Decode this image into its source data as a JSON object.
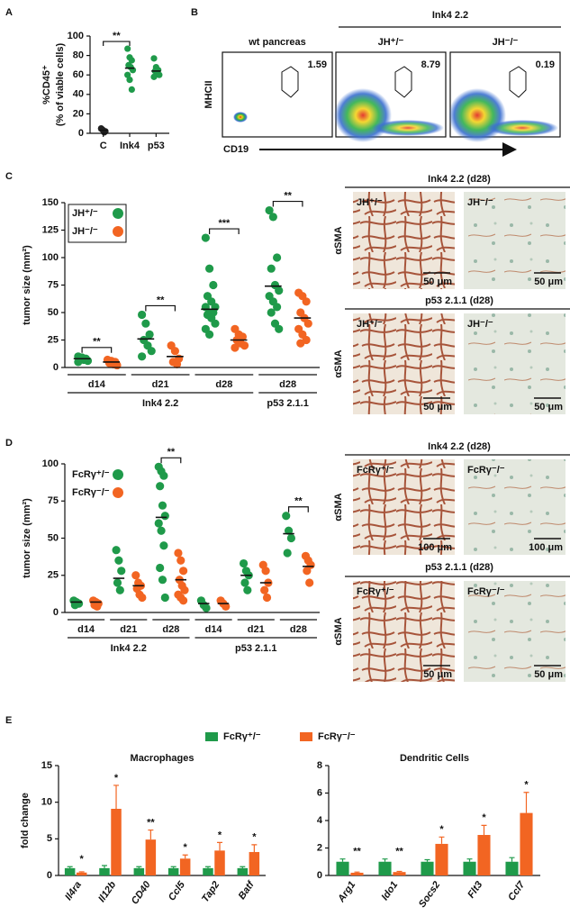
{
  "panel_labels": [
    "A",
    "B",
    "C",
    "D",
    "E"
  ],
  "flow_panel": {
    "title": "Ink4 2.2",
    "ylabel": "MHCII",
    "xlabel": "CD19",
    "plots": [
      {
        "title": "wt pancreas",
        "gate_percent": 1.59
      },
      {
        "title": "JH⁺/⁻",
        "gate_percent": 8.79
      },
      {
        "title": "JH⁻/⁻",
        "gate_percent": 0.19
      }
    ]
  },
  "histology": [
    {
      "rows": [
        {
          "title": "Ink4 2.2 (d28)",
          "stain": "αSMA",
          "images": [
            {
              "label": "JH⁺/⁻",
              "scale_bar": "50 μm"
            },
            {
              "label": "JH⁻/⁻",
              "scale_bar": "50 μm"
            }
          ]
        },
        {
          "title": "p53 2.1.1 (d28)",
          "stain": "αSMA",
          "images": [
            {
              "label": "JH⁺/⁻",
              "scale_bar": "50 μm"
            },
            {
              "label": "JH⁻/⁻",
              "scale_bar": "50 μm"
            }
          ]
        }
      ]
    },
    {
      "rows": [
        {
          "title": "Ink4 2.2 (d28)",
          "stain": "αSMA",
          "images": [
            {
              "label": "FcRγ⁺/⁻",
              "scale_bar": "100 μm"
            },
            {
              "label": "FcRγ⁻/⁻",
              "scale_bar": "100 μm"
            }
          ]
        },
        {
          "title": "p53 2.1.1 (d28)",
          "stain": "αSMA",
          "images": [
            {
              "label": "FcRγ⁺/⁻",
              "scale_bar": "50 μm"
            },
            {
              "label": "FcRγ⁻/⁻",
              "scale_bar": "50 μm"
            }
          ]
        }
      ]
    }
  ],
  "chart_data": [
    {
      "type": "dotplot",
      "ylabel": [
        "%CD45⁺",
        "(% of viable cells)"
      ],
      "categories": [
        "C",
        "Ink4",
        "p53"
      ],
      "series": [
        {
          "colors": [
            "#222222",
            "#1f9a4a",
            "#1f9a4a"
          ],
          "values": [
            [
              5,
              3,
              2,
              4,
              1
            ],
            [
              87,
              78,
              75,
              70,
              68,
              65,
              60,
              55,
              45
            ],
            [
              77,
              68,
              65,
              64,
              62,
              60,
              58
            ]
          ],
          "means": [
            3,
            67,
            64
          ]
        }
      ],
      "significance": "**",
      "ylim": [
        0,
        100
      ],
      "yticks": [
        0,
        20,
        40,
        60,
        80,
        100
      ]
    },
    {
      "type": "dotplot",
      "ylabel": "tumor size (mm²)",
      "categories": [
        "d14",
        "d21",
        "d28",
        "d28"
      ],
      "category_groups": [
        "Ink4 2.2",
        "Ink4 2.2",
        "Ink4 2.2",
        "p53 2.1.1"
      ],
      "legend_frame": true,
      "series": [
        {
          "name": "JH⁺/⁻",
          "color": "#1f9a4a",
          "values": [
            [
              10,
              9,
              8,
              8,
              7,
              6,
              5
            ],
            [
              48,
              40,
              30,
              25,
              20,
              15,
              10
            ],
            [
              118,
              90,
              75,
              65,
              60,
              55,
              55,
              50,
              50,
              48,
              45,
              40,
              35,
              30
            ],
            [
              143,
              137,
              100,
              90,
              75,
              70,
              65,
              60,
              55,
              50,
              40,
              35
            ]
          ],
          "means": [
            8,
            26,
            53,
            74
          ]
        },
        {
          "name": "JH⁻/⁻",
          "color": "#f26522",
          "values": [
            [
              7,
              6,
              5,
              4,
              3,
              2
            ],
            [
              20,
              15,
              8,
              5,
              3
            ],
            [
              35,
              30,
              28,
              25,
              22,
              20,
              18
            ],
            [
              68,
              65,
              60,
              50,
              45,
              40,
              35,
              30,
              25,
              22
            ]
          ],
          "means": [
            5,
            10,
            25,
            45
          ]
        }
      ],
      "significance": [
        "**",
        "**",
        "***",
        "**"
      ],
      "ylim": [
        0,
        150
      ],
      "yticks": [
        0,
        25,
        50,
        75,
        100,
        125,
        150
      ]
    },
    {
      "type": "dotplot",
      "ylabel": "tumor size (mm²)",
      "categories": [
        "d14",
        "d21",
        "d28",
        "d14",
        "d21",
        "d28"
      ],
      "category_groups": [
        "Ink4 2.2",
        "Ink4 2.2",
        "Ink4 2.2",
        "p53 2.1.1",
        "p53 2.1.1",
        "p53 2.1.1"
      ],
      "legend_frame": false,
      "series": [
        {
          "name": "FcRγ⁺/⁻",
          "color": "#1f9a4a",
          "values": [
            [
              8,
              7,
              6,
              5
            ],
            [
              42,
              35,
              28,
              20,
              15
            ],
            [
              98,
              95,
              92,
              85,
              72,
              65,
              60,
              55,
              45,
              30,
              22,
              10
            ],
            [
              8,
              5,
              3
            ],
            [
              33,
              28,
              25,
              20,
              15
            ],
            [
              65,
              55,
              50,
              40
            ]
          ],
          "means": [
            7,
            23,
            64,
            6,
            25,
            53
          ]
        },
        {
          "name": "FcRγ⁻/⁻",
          "color": "#f26522",
          "values": [
            [
              8,
              7,
              6,
              5,
              4
            ],
            [
              25,
              20,
              18,
              16,
              12,
              10
            ],
            [
              40,
              35,
              28,
              22,
              18,
              15,
              12,
              10,
              8
            ],
            [
              8,
              6,
              4
            ],
            [
              32,
              28,
              20,
              15,
              10
            ],
            [
              38,
              35,
              32,
              28,
              20
            ]
          ],
          "means": [
            7,
            18,
            22,
            6,
            20,
            31
          ]
        }
      ],
      "significance": [
        null,
        null,
        "**",
        null,
        null,
        "**"
      ],
      "ylim": [
        0,
        100
      ],
      "yticks": [
        0,
        25,
        50,
        75,
        100
      ]
    },
    {
      "type": "bar",
      "title": "Macrophages",
      "ylabel": "fold change",
      "categories": [
        "Il4ra",
        "Il12b",
        "CD40",
        "Ccl5",
        "Tap2",
        "Batf"
      ],
      "series": [
        {
          "name": "FcRγ⁺/⁻",
          "color": "#1f9a4a",
          "values": [
            1,
            1,
            1,
            1,
            1,
            1
          ],
          "errors": [
            0.2,
            0.35,
            0.2,
            0.2,
            0.2,
            0.2
          ]
        },
        {
          "name": "FcRγ⁻/⁻",
          "color": "#f26522",
          "values": [
            0.4,
            9.1,
            4.9,
            2.3,
            3.4,
            3.2
          ],
          "errors": [
            0.1,
            3.2,
            1.3,
            0.5,
            1.1,
            1.0
          ]
        }
      ],
      "significance": [
        "*",
        "*",
        "**",
        "*",
        "*",
        "*"
      ],
      "ylim": [
        0,
        15
      ],
      "yticks": [
        0,
        5,
        10,
        15
      ]
    },
    {
      "type": "bar",
      "title": "Dendritic Cells",
      "categories": [
        "Arg1",
        "Ido1",
        "Socs2",
        "Flt3",
        "Ccl7"
      ],
      "series": [
        {
          "color": "#1f9a4a",
          "values": [
            1,
            1,
            1,
            1,
            1
          ],
          "errors": [
            0.2,
            0.2,
            0.15,
            0.2,
            0.3
          ]
        },
        {
          "color": "#f26522",
          "values": [
            0.2,
            0.25,
            2.3,
            2.95,
            4.55
          ],
          "errors": [
            0.05,
            0.05,
            0.5,
            0.7,
            1.5
          ]
        }
      ],
      "significance": [
        "**",
        "**",
        "*",
        "*",
        "*"
      ],
      "ylim": [
        0,
        8
      ],
      "yticks": [
        0,
        2,
        4,
        6,
        8
      ]
    }
  ]
}
